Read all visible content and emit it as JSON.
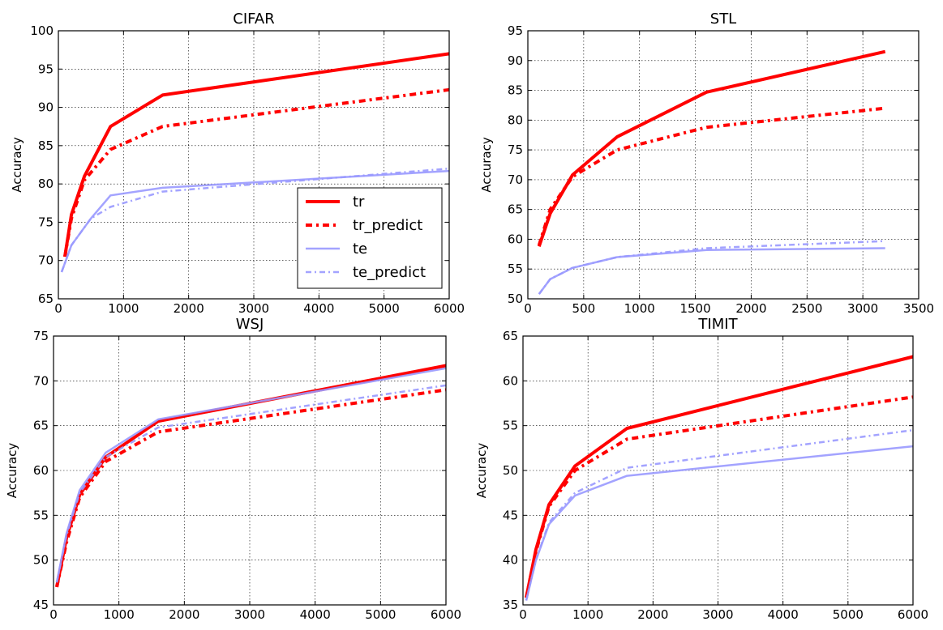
{
  "chart_data": [
    {
      "type": "line",
      "title": "CIFAR",
      "xlabel": "",
      "ylabel": "Accuracy",
      "xlim": [
        0,
        6000
      ],
      "ylim": [
        65,
        100
      ],
      "xticks": [
        0,
        1000,
        2000,
        3000,
        4000,
        5000,
        6000
      ],
      "yticks": [
        65,
        70,
        75,
        80,
        85,
        90,
        95,
        100
      ],
      "grid": true,
      "legend": "bottom-right",
      "series": [
        {
          "name": "tr",
          "color": "#ff0000",
          "style": "solid-thick",
          "x": [
            100,
            200,
            400,
            800,
            1600,
            6000
          ],
          "y": [
            70.5,
            76.0,
            81.0,
            87.5,
            91.6,
            97.0
          ]
        },
        {
          "name": "tr_predict",
          "color": "#ff0000",
          "style": "dashdot-thick",
          "x": [
            100,
            200,
            400,
            800,
            1600,
            6000
          ],
          "y": [
            70.5,
            75.5,
            80.5,
            84.5,
            87.5,
            92.3
          ]
        },
        {
          "name": "te",
          "color": "#9999ff",
          "style": "solid",
          "x": [
            50,
            200,
            500,
            800,
            1600,
            6000
          ],
          "y": [
            68.5,
            72.0,
            75.5,
            78.5,
            79.5,
            81.7
          ]
        },
        {
          "name": "te_predict",
          "color": "#9999ff",
          "style": "dashdot",
          "x": [
            50,
            200,
            500,
            800,
            1600,
            6000
          ],
          "y": [
            68.5,
            72.0,
            75.5,
            77.0,
            79.0,
            82.0
          ]
        }
      ]
    },
    {
      "type": "line",
      "title": "STL",
      "xlabel": "",
      "ylabel": "Accuracy",
      "xlim": [
        0,
        3500
      ],
      "ylim": [
        50,
        95
      ],
      "xticks": [
        0,
        500,
        1000,
        1500,
        2000,
        2500,
        3000,
        3500
      ],
      "yticks": [
        50,
        55,
        60,
        65,
        70,
        75,
        80,
        85,
        90,
        95
      ],
      "grid": true,
      "series": [
        {
          "name": "tr",
          "color": "#ff0000",
          "style": "solid-thick",
          "x": [
            100,
            200,
            400,
            800,
            1600,
            3200
          ],
          "y": [
            58.8,
            64.3,
            70.8,
            77.2,
            84.7,
            91.5
          ]
        },
        {
          "name": "tr_predict",
          "color": "#ff0000",
          "style": "dashdot-thick",
          "x": [
            100,
            200,
            400,
            800,
            1600,
            3200
          ],
          "y": [
            59.0,
            65.0,
            70.5,
            75.0,
            78.8,
            82.0
          ]
        },
        {
          "name": "te",
          "color": "#9999ff",
          "style": "solid",
          "x": [
            100,
            200,
            400,
            800,
            1600,
            3200
          ],
          "y": [
            50.8,
            53.3,
            55.2,
            57.0,
            58.2,
            58.5
          ]
        },
        {
          "name": "te_predict",
          "color": "#9999ff",
          "style": "dashdot",
          "x": [
            100,
            200,
            400,
            800,
            1600,
            3200
          ],
          "y": [
            50.8,
            53.3,
            55.2,
            57.0,
            58.5,
            59.7
          ]
        }
      ]
    },
    {
      "type": "line",
      "title": "WSJ",
      "xlabel": "",
      "ylabel": "Accuracy",
      "xlim": [
        0,
        6000
      ],
      "ylim": [
        45,
        75
      ],
      "xticks": [
        0,
        1000,
        2000,
        3000,
        4000,
        5000,
        6000
      ],
      "yticks": [
        45,
        50,
        55,
        60,
        65,
        70,
        75
      ],
      "grid": true,
      "series": [
        {
          "name": "tr",
          "color": "#ff0000",
          "style": "solid-thick",
          "x": [
            50,
            200,
            400,
            800,
            1600,
            6000
          ],
          "y": [
            47.0,
            52.5,
            57.3,
            61.5,
            65.5,
            71.7
          ]
        },
        {
          "name": "tr_predict",
          "color": "#ff0000",
          "style": "dashdot-thick",
          "x": [
            50,
            200,
            400,
            800,
            1600,
            6000
          ],
          "y": [
            47.0,
            52.0,
            57.0,
            61.0,
            64.3,
            69.0
          ]
        },
        {
          "name": "te",
          "color": "#9999ff",
          "style": "solid",
          "x": [
            50,
            200,
            400,
            800,
            1600,
            6000
          ],
          "y": [
            47.5,
            53.0,
            57.8,
            62.0,
            65.7,
            71.4
          ]
        },
        {
          "name": "te_predict",
          "color": "#9999ff",
          "style": "dashdot",
          "x": [
            50,
            200,
            400,
            800,
            1600,
            6000
          ],
          "y": [
            47.5,
            52.8,
            57.5,
            61.5,
            64.8,
            69.5
          ]
        }
      ]
    },
    {
      "type": "line",
      "title": "TIMIT",
      "xlabel": "",
      "ylabel": "Accuracy",
      "xlim": [
        0,
        6000
      ],
      "ylim": [
        35,
        65
      ],
      "xticks": [
        0,
        1000,
        2000,
        3000,
        4000,
        5000,
        6000
      ],
      "yticks": [
        35,
        40,
        45,
        50,
        55,
        60,
        65
      ],
      "grid": true,
      "series": [
        {
          "name": "tr",
          "color": "#ff0000",
          "style": "solid-thick",
          "x": [
            50,
            200,
            400,
            800,
            1600,
            6000
          ],
          "y": [
            35.8,
            41.2,
            46.2,
            50.5,
            54.7,
            62.7
          ]
        },
        {
          "name": "tr_predict",
          "color": "#ff0000",
          "style": "dashdot-thick",
          "x": [
            50,
            200,
            400,
            800,
            1600,
            6000
          ],
          "y": [
            35.8,
            41.0,
            46.0,
            50.0,
            53.5,
            58.2
          ]
        },
        {
          "name": "te",
          "color": "#9999ff",
          "style": "solid",
          "x": [
            50,
            200,
            400,
            800,
            1600,
            6000
          ],
          "y": [
            35.5,
            40.0,
            44.0,
            47.2,
            49.4,
            52.7
          ]
        },
        {
          "name": "te_predict",
          "color": "#9999ff",
          "style": "dashdot",
          "x": [
            50,
            200,
            400,
            800,
            1600,
            6000
          ],
          "y": [
            35.5,
            40.0,
            44.2,
            47.5,
            50.3,
            54.5
          ]
        }
      ]
    }
  ]
}
